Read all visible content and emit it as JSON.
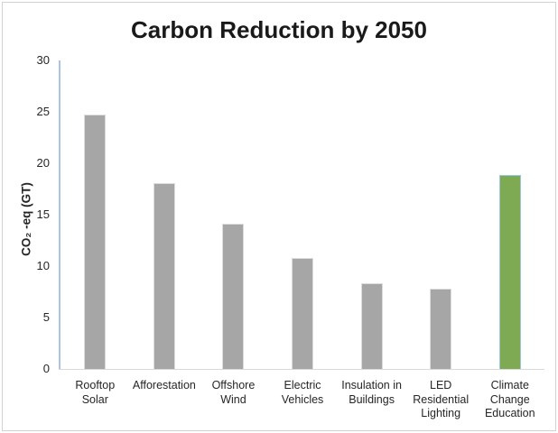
{
  "chart_data": {
    "type": "bar",
    "title": "Carbon Reduction by 2050",
    "xlabel": "",
    "ylabel": "CO₂ -eq (GT)",
    "categories": [
      "Rooftop Solar",
      "Afforestation",
      "Offshore Wind",
      "Electric Vehicles",
      "Insulation in Buildings",
      "LED Residential Lighting",
      "Climate Change Education"
    ],
    "label_lines": [
      [
        "Rooftop",
        "Solar"
      ],
      [
        "Afforestation"
      ],
      [
        "Offshore",
        "Wind"
      ],
      [
        "Electric",
        "Vehicles"
      ],
      [
        "Insulation in",
        "Buildings"
      ],
      [
        "LED",
        "Residential",
        "Lighting"
      ],
      [
        "Climate",
        "Change",
        "Education"
      ]
    ],
    "values": [
      24.7,
      18.1,
      14.1,
      10.8,
      8.3,
      7.8,
      18.9
    ],
    "yticks": [
      0,
      5,
      10,
      15,
      20,
      25,
      30
    ],
    "ylim": [
      0,
      30
    ],
    "grid": false,
    "legend": false,
    "highlight_index": 6,
    "bar_fill": [
      "#a6a6a6",
      "#a6a6a6",
      "#a6a6a6",
      "#a6a6a6",
      "#a6a6a6",
      "#a6a6a6",
      "#7daa52"
    ],
    "bar_border": [
      "#dcdcdc",
      "#dcdcdc",
      "#dcdcdc",
      "#dcdcdc",
      "#dcdcdc",
      "#dcdcdc",
      "#9dc3e6"
    ],
    "colors": {
      "bar_gray": "#a6a6a6",
      "bar_green": "#7daa52",
      "green_bar_border": "#9dc3e6",
      "y_axis_line": "#a9c4e4",
      "x_axis_line": "#d9d9d9",
      "frame_border": "#d2d2d2",
      "text": "#262626",
      "title_text": "#1a1a1a",
      "background": "#ffffff"
    }
  }
}
